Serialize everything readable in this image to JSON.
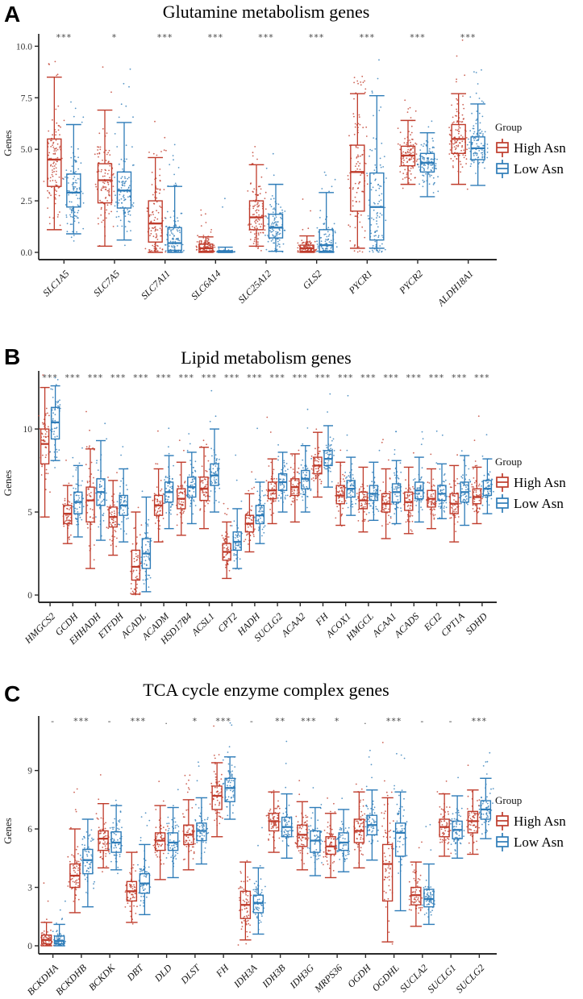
{
  "figure": {
    "background": "#ffffff"
  },
  "colors": {
    "high": "#BF3B2B",
    "low": "#2E7CB8",
    "axis": "#2a2a2a",
    "stars": "#4a4a4a"
  },
  "legend": {
    "title": "Group",
    "items": [
      {
        "key": "high",
        "label": "High Asn"
      },
      {
        "key": "low",
        "label": "Low Asn"
      }
    ]
  },
  "chart_data": [
    {
      "type": "boxplot",
      "panel_label": "A",
      "title": "Glutamine metabolism genes",
      "ylabel": "Genes",
      "yticks": [
        0,
        2.5,
        5,
        7.5,
        10
      ],
      "ytick_labels": [
        "0.0",
        "2.5",
        "5.0",
        "7.5",
        "10.0"
      ],
      "ylim": [
        0,
        10.6
      ],
      "legend_position": "right",
      "categories": [
        "SLC1A5",
        "SLC7A5",
        "SLC7A11",
        "SLC6A14",
        "SLC25A12",
        "GLS2",
        "PYCR1",
        "PYCR2",
        "ALDH18A1"
      ],
      "significance": [
        "***",
        "*",
        "***",
        "***",
        "***",
        "***",
        "***",
        "***",
        "***"
      ],
      "box_format": "[whisker_low, q1, median, q3, whisker_high]",
      "series": [
        {
          "name": "High Asn",
          "color_key": "high",
          "boxes": [
            [
              1.1,
              3.2,
              4.5,
              5.5,
              8.5
            ],
            [
              0.3,
              2.4,
              3.5,
              4.3,
              6.9
            ],
            [
              0.0,
              0.5,
              1.4,
              2.5,
              4.6
            ],
            [
              0.0,
              0.05,
              0.2,
              0.4,
              0.75
            ],
            [
              0.3,
              1.1,
              1.7,
              2.5,
              4.25
            ],
            [
              0.0,
              0.05,
              0.2,
              0.35,
              0.8
            ],
            [
              0.2,
              2.0,
              3.9,
              5.2,
              7.7
            ],
            [
              3.3,
              4.2,
              4.7,
              5.15,
              6.4
            ],
            [
              3.3,
              4.8,
              5.5,
              6.2,
              7.7
            ]
          ]
        },
        {
          "name": "Low Asn",
          "color_key": "low",
          "boxes": [
            [
              0.9,
              2.2,
              2.9,
              3.8,
              6.2
            ],
            [
              0.6,
              2.15,
              3.0,
              3.9,
              6.3
            ],
            [
              0.0,
              0.1,
              0.45,
              1.2,
              3.2
            ],
            [
              0.0,
              0.0,
              0.02,
              0.08,
              0.25
            ],
            [
              0.05,
              0.7,
              1.2,
              1.85,
              3.3
            ],
            [
              0.0,
              0.05,
              0.35,
              1.1,
              2.9
            ],
            [
              0.2,
              0.6,
              2.2,
              3.85,
              7.6
            ],
            [
              2.7,
              3.9,
              4.35,
              4.8,
              5.8
            ],
            [
              3.25,
              4.5,
              5.05,
              5.6,
              7.2
            ]
          ]
        }
      ]
    },
    {
      "type": "boxplot",
      "panel_label": "B",
      "title": "Lipid metabolism genes",
      "ylabel": "Genes",
      "yticks": [
        0,
        5,
        10
      ],
      "ytick_labels": [
        "0",
        "5",
        "10"
      ],
      "ylim": [
        0,
        13.5
      ],
      "legend_position": "right",
      "categories": [
        "HMGCS2",
        "GCDH",
        "EHHADH",
        "ETFDH",
        "ACADL",
        "ACADM",
        "HSD17B4",
        "ACSL1",
        "CPT2",
        "HADH",
        "SUCLG2",
        "ACAA2",
        "FH",
        "ACOX1",
        "HMGCL",
        "ACAA1",
        "ACADS",
        "ECI2",
        "CPT1A",
        "SDHD"
      ],
      "significance": [
        "***",
        "***",
        "***",
        "***",
        "***",
        "***",
        "***",
        "***",
        "***",
        "***",
        "***",
        "***",
        "***",
        "***",
        "***",
        "***",
        "***",
        "***",
        "***",
        "***"
      ],
      "box_format": "[whisker_low, q1, median, q3, whisker_high]",
      "series": [
        {
          "name": "High Asn",
          "color_key": "high",
          "boxes": [
            [
              4.7,
              7.9,
              9.1,
              10.0,
              12.5
            ],
            [
              3.1,
              4.3,
              4.9,
              5.4,
              6.6
            ],
            [
              1.6,
              4.4,
              5.7,
              6.5,
              8.8
            ],
            [
              2.4,
              4.1,
              4.7,
              5.3,
              6.9
            ],
            [
              0.05,
              0.9,
              1.7,
              2.7,
              5.0
            ],
            [
              3.2,
              4.8,
              5.4,
              6.0,
              7.6
            ],
            [
              3.6,
              5.2,
              5.8,
              6.4,
              8.0
            ],
            [
              4.0,
              5.7,
              6.4,
              7.1,
              8.9
            ],
            [
              1.0,
              2.1,
              2.6,
              3.1,
              4.4
            ],
            [
              2.6,
              3.8,
              4.3,
              4.8,
              6.1
            ],
            [
              4.3,
              5.8,
              6.3,
              6.8,
              8.2
            ],
            [
              4.4,
              6.0,
              6.5,
              7.0,
              8.5
            ],
            [
              5.9,
              7.3,
              7.8,
              8.3,
              9.8
            ],
            [
              4.2,
              5.5,
              6.0,
              6.6,
              8.0
            ],
            [
              3.8,
              5.2,
              5.7,
              6.2,
              7.7
            ],
            [
              3.4,
              5.0,
              5.5,
              6.1,
              7.6
            ],
            [
              3.7,
              5.1,
              5.6,
              6.2,
              7.7
            ],
            [
              4.0,
              5.3,
              5.8,
              6.3,
              7.6
            ],
            [
              3.2,
              4.9,
              5.5,
              6.1,
              7.8
            ],
            [
              4.3,
              5.5,
              5.9,
              6.4,
              7.7
            ]
          ]
        },
        {
          "name": "Low Asn",
          "color_key": "low",
          "boxes": [
            [
              8.1,
              9.4,
              10.4,
              11.3,
              12.6
            ],
            [
              3.5,
              4.9,
              5.6,
              6.2,
              7.8
            ],
            [
              3.3,
              5.4,
              6.2,
              7.0,
              9.3
            ],
            [
              3.2,
              4.8,
              5.4,
              6.0,
              7.6
            ],
            [
              0.2,
              1.6,
              2.5,
              3.4,
              5.9
            ],
            [
              4.0,
              5.6,
              6.2,
              6.8,
              8.4
            ],
            [
              4.3,
              5.9,
              6.5,
              7.1,
              8.6
            ],
            [
              5.0,
              6.6,
              7.2,
              7.9,
              10.0
            ],
            [
              1.6,
              2.7,
              3.2,
              3.8,
              5.2
            ],
            [
              3.1,
              4.3,
              4.8,
              5.4,
              6.8
            ],
            [
              5.0,
              6.3,
              6.8,
              7.3,
              8.6
            ],
            [
              5.0,
              6.4,
              7.0,
              7.5,
              9.0
            ],
            [
              6.5,
              7.8,
              8.2,
              8.7,
              10.2
            ],
            [
              4.8,
              5.9,
              6.4,
              6.9,
              8.3
            ],
            [
              4.5,
              5.7,
              6.1,
              6.6,
              8.0
            ],
            [
              4.3,
              5.6,
              6.2,
              6.7,
              8.1
            ],
            [
              4.4,
              5.8,
              6.3,
              6.8,
              8.3
            ],
            [
              4.6,
              5.7,
              6.1,
              6.6,
              7.9
            ],
            [
              4.2,
              5.6,
              6.2,
              6.8,
              8.4
            ],
            [
              4.9,
              6.0,
              6.4,
              6.9,
              8.2
            ]
          ]
        }
      ]
    },
    {
      "type": "boxplot",
      "panel_label": "C",
      "title": "TCA cycle enzyme complex genes",
      "ylabel": "Genes",
      "yticks": [
        0,
        3,
        6,
        9
      ],
      "ytick_labels": [
        "0",
        "3",
        "6",
        "9"
      ],
      "ylim": [
        0,
        11.8
      ],
      "legend_position": "right",
      "categories": [
        "BCKDHA",
        "BCKDHB",
        "BCKDK",
        "DBT",
        "DLD",
        "DLST",
        "FH",
        "IDH3A",
        "IDH3B",
        "IDH3G",
        "MRPS36",
        "OGDH",
        "OGDHL",
        "SUCLA2",
        "SUCLG1",
        "SUCLG2"
      ],
      "significance": [
        "-",
        "***",
        "-",
        "***",
        ".",
        "*",
        "***",
        "-",
        "**",
        "***",
        "*",
        ".",
        "***",
        "-",
        "-",
        "***"
      ],
      "box_format": "[whisker_low, q1, median, q3, whisker_high]",
      "series": [
        {
          "name": "High Asn",
          "color_key": "high",
          "boxes": [
            [
              0.0,
              0.1,
              0.3,
              0.55,
              1.2
            ],
            [
              1.7,
              3.0,
              3.6,
              4.2,
              6.0
            ],
            [
              4.0,
              4.9,
              5.5,
              5.9,
              7.3
            ],
            [
              1.2,
              2.3,
              2.8,
              3.3,
              4.8
            ],
            [
              3.4,
              4.9,
              5.4,
              5.8,
              7.2
            ],
            [
              3.9,
              5.2,
              5.7,
              6.2,
              7.5
            ],
            [
              5.6,
              7.0,
              7.7,
              8.2,
              9.4
            ],
            [
              0.3,
              1.4,
              2.1,
              2.8,
              4.3
            ],
            [
              4.8,
              5.9,
              6.4,
              6.8,
              7.9
            ],
            [
              3.9,
              5.1,
              5.7,
              6.2,
              7.4
            ],
            [
              3.5,
              4.7,
              5.1,
              5.6,
              6.8
            ],
            [
              4.0,
              5.3,
              5.9,
              6.5,
              7.9
            ],
            [
              0.2,
              2.3,
              4.2,
              5.2,
              7.6
            ],
            [
              1.0,
              2.1,
              2.6,
              3.0,
              4.3
            ],
            [
              4.6,
              5.6,
              6.1,
              6.5,
              7.8
            ],
            [
              4.7,
              5.8,
              6.4,
              6.9,
              8.0
            ]
          ]
        },
        {
          "name": "Low Asn",
          "color_key": "low",
          "boxes": [
            [
              0.0,
              0.1,
              0.25,
              0.5,
              1.1
            ],
            [
              2.0,
              3.7,
              4.4,
              4.95,
              6.5
            ],
            [
              3.9,
              4.8,
              5.3,
              5.85,
              7.2
            ],
            [
              1.6,
              2.7,
              3.2,
              3.7,
              5.2
            ],
            [
              3.5,
              4.9,
              5.3,
              5.8,
              7.1
            ],
            [
              4.2,
              5.4,
              5.9,
              6.3,
              7.6
            ],
            [
              6.5,
              7.4,
              8.1,
              8.6,
              9.7
            ],
            [
              0.6,
              1.7,
              2.2,
              2.6,
              4.0
            ],
            [
              4.5,
              5.6,
              6.1,
              6.6,
              7.8
            ],
            [
              3.6,
              4.8,
              5.4,
              5.9,
              7.1
            ],
            [
              3.8,
              4.9,
              5.3,
              5.8,
              7.0
            ],
            [
              4.4,
              5.7,
              6.2,
              6.7,
              8.0
            ],
            [
              1.8,
              4.6,
              5.8,
              6.3,
              7.9
            ],
            [
              1.1,
              2.0,
              2.4,
              2.9,
              4.2
            ],
            [
              4.5,
              5.5,
              5.95,
              6.4,
              7.7
            ],
            [
              5.5,
              6.5,
              7.0,
              7.45,
              8.6
            ]
          ]
        }
      ]
    }
  ]
}
